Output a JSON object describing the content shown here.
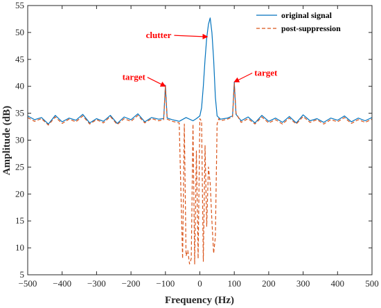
{
  "chart_data": {
    "type": "line",
    "xlabel": "Frequency (Hz)",
    "ylabel": "Amplitude (dB)",
    "xlim": [
      -500,
      500
    ],
    "ylim": [
      5,
      55
    ],
    "xticks": [
      -500,
      -400,
      -300,
      -200,
      -100,
      0,
      100,
      200,
      300,
      400,
      500
    ],
    "yticks": [
      5,
      10,
      15,
      20,
      25,
      30,
      35,
      40,
      45,
      50,
      55
    ],
    "grid": false,
    "legend_position": "top-right",
    "colors": {
      "original": "#0072BD",
      "suppressed": "#D95319",
      "annotation": "#FF0000"
    },
    "series": [
      {
        "name": "original signal",
        "style": "solid",
        "x": [
          -500,
          -480,
          -460,
          -440,
          -420,
          -400,
          -380,
          -360,
          -340,
          -320,
          -300,
          -280,
          -260,
          -240,
          -220,
          -200,
          -180,
          -160,
          -140,
          -120,
          -105,
          -100,
          -95,
          -80,
          -60,
          -40,
          -20,
          -10,
          0,
          5,
          10,
          15,
          20,
          25,
          30,
          35,
          40,
          45,
          50,
          60,
          80,
          95,
          100,
          105,
          120,
          140,
          160,
          180,
          200,
          220,
          240,
          260,
          280,
          300,
          320,
          340,
          360,
          380,
          400,
          420,
          440,
          460,
          480,
          500
        ],
        "y": [
          34.5,
          33.8,
          34.2,
          33.0,
          34.6,
          33.4,
          34.1,
          33.7,
          34.8,
          33.2,
          34.0,
          33.5,
          34.6,
          33.1,
          34.3,
          33.8,
          34.9,
          33.4,
          34.2,
          33.9,
          34.0,
          40.2,
          34.1,
          33.8,
          33.5,
          34.2,
          33.6,
          34.0,
          34.5,
          36.0,
          40.0,
          45.0,
          49.0,
          51.5,
          52.7,
          50.0,
          45.0,
          38.0,
          34.5,
          33.9,
          34.1,
          34.5,
          40.8,
          34.8,
          33.6,
          34.3,
          33.2,
          34.6,
          33.5,
          34.1,
          33.3,
          34.4,
          33.2,
          34.7,
          33.6,
          34.0,
          33.3,
          34.1,
          33.7,
          34.5,
          33.4,
          34.1,
          33.6,
          34.2
        ]
      },
      {
        "name": "post-suppression",
        "style": "dashed",
        "x": [
          -500,
          -480,
          -460,
          -440,
          -420,
          -400,
          -380,
          -360,
          -340,
          -320,
          -300,
          -280,
          -260,
          -240,
          -220,
          -200,
          -180,
          -160,
          -140,
          -120,
          -105,
          -100,
          -95,
          -80,
          -60,
          -50,
          -45,
          -40,
          -35,
          -30,
          -25,
          -20,
          -15,
          -10,
          -5,
          0,
          5,
          10,
          15,
          20,
          25,
          30,
          35,
          40,
          45,
          50,
          55,
          60,
          80,
          95,
          100,
          105,
          120,
          140,
          160,
          180,
          200,
          220,
          240,
          260,
          280,
          300,
          320,
          340,
          360,
          380,
          400,
          420,
          440,
          460,
          480,
          500
        ],
        "y": [
          34.2,
          33.5,
          34.0,
          32.8,
          34.3,
          33.1,
          33.9,
          33.4,
          34.5,
          33.0,
          33.8,
          33.2,
          34.4,
          32.9,
          34.0,
          33.5,
          34.6,
          33.2,
          34.0,
          33.6,
          33.8,
          40.0,
          33.9,
          33.5,
          33.2,
          8.0,
          33.0,
          8.5,
          9.5,
          7.0,
          8.0,
          33.0,
          7.0,
          28.0,
          8.0,
          34.0,
          33.5,
          7.5,
          29.0,
          14.0,
          25.0,
          22.0,
          15.0,
          9.0,
          12.0,
          33.0,
          34.0,
          33.6,
          33.9,
          34.3,
          40.5,
          35.0,
          33.3,
          34.0,
          33.0,
          34.3,
          33.2,
          33.8,
          33.0,
          34.1,
          33.0,
          34.4,
          33.3,
          33.8,
          33.0,
          33.8,
          33.4,
          34.2,
          33.1,
          33.8,
          33.3,
          33.9
        ]
      }
    ],
    "annotations": [
      {
        "text": "clutter",
        "point": [
          22,
          49.2
        ]
      },
      {
        "text": "target",
        "point": [
          -100,
          40.0
        ]
      },
      {
        "text": "target",
        "point": [
          100,
          40.8
        ]
      }
    ]
  }
}
